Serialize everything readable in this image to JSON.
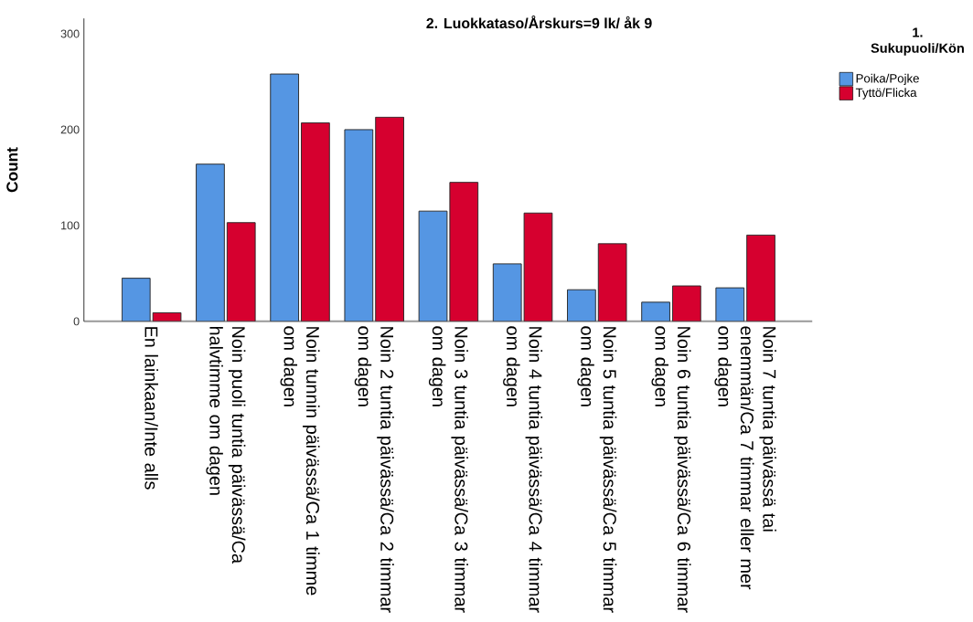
{
  "chart_data": {
    "type": "bar",
    "title": "2. Luokkataso/Årskurs=9 lk/ åk 9",
    "ylabel": "Count",
    "legend_title": "1. Sukupuoli/Kön",
    "categories": [
      "En lainkaan/Inte alls",
      "Noin puoli tuntia päivässä/Ca halvtimme om dagen",
      "Noin tunnin päivässä/Ca 1 timme om dagen",
      "Noin 2 tuntia päivässä/Ca 2 timmar om dagen",
      "Noin 3 tuntia päivässä/Ca 3 timmar om dagen",
      "Noin 4 tuntia päivässä/Ca 4 timmar om dagen",
      "Noin 5 tuntia päivässä/Ca 5 timmar om dagen",
      "Noin 6 tuntia päivässä/Ca 6 timmar om dagen",
      "Noin 7 tuntia päivässä tai enemmän/Ca 7 timmar eller mer om dagen"
    ],
    "series": [
      {
        "name": "Poika/Pojke",
        "color": "#5596e3",
        "values": [
          45,
          164,
          258,
          200,
          115,
          60,
          33,
          20,
          35
        ]
      },
      {
        "name": "Tyttö/Flicka",
        "color": "#d6002f",
        "values": [
          9,
          103,
          207,
          213,
          145,
          113,
          81,
          37,
          90
        ]
      }
    ],
    "ylim": [
      0,
      316
    ],
    "yticks": [
      0,
      100,
      200,
      300
    ],
    "grid": false,
    "legend": "top right"
  }
}
